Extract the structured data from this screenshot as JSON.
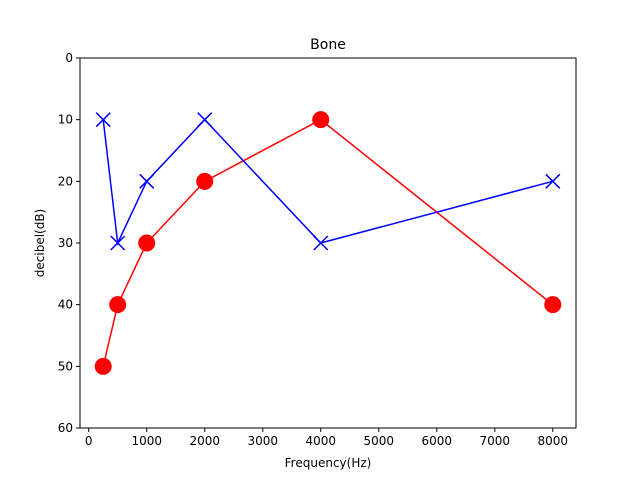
{
  "chart_data": {
    "type": "line",
    "title": "Bone",
    "xlabel": "Frequency(Hz)",
    "ylabel": "decibel(dB)",
    "xlim": [
      -150,
      8400
    ],
    "ylim": [
      60,
      0
    ],
    "y_inverted": true,
    "xticks": [
      0,
      1000,
      2000,
      3000,
      4000,
      5000,
      6000,
      7000,
      8000
    ],
    "yticks": [
      0,
      10,
      20,
      30,
      40,
      50,
      60
    ],
    "grid": false,
    "legend": "none",
    "series": [
      {
        "color": "#ff0000",
        "marker": "circle",
        "points": [
          {
            "x": 250,
            "y": 50
          },
          {
            "x": 500,
            "y": 40
          },
          {
            "x": 1000,
            "y": 30
          },
          {
            "x": 2000,
            "y": 20
          },
          {
            "x": 4000,
            "y": 10
          },
          {
            "x": 8000,
            "y": 40
          }
        ]
      },
      {
        "color": "#0000ff",
        "marker": "x",
        "points": [
          {
            "x": 250,
            "y": 10
          },
          {
            "x": 500,
            "y": 30
          },
          {
            "x": 1000,
            "y": 20
          },
          {
            "x": 2000,
            "y": 10
          },
          {
            "x": 4000,
            "y": 30
          },
          {
            "x": 8000,
            "y": 20
          }
        ]
      }
    ]
  }
}
